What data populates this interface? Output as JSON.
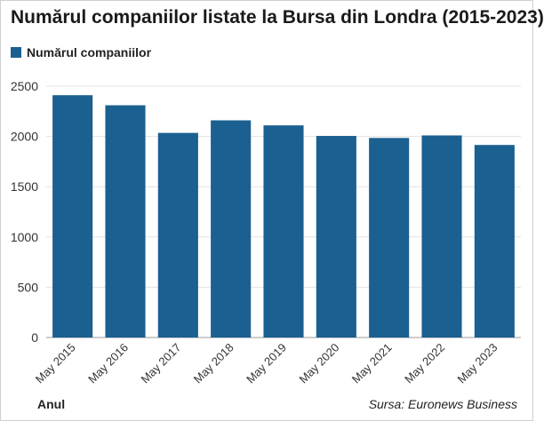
{
  "chart_data": {
    "type": "bar",
    "title": "Numărul companiilor listate la Bursa din Londra (2015-2023)",
    "categories": [
      "May 2015",
      "May 2016",
      "May 2017",
      "May 2018",
      "May 2019",
      "May 2020",
      "May 2021",
      "May 2022",
      "May 2023"
    ],
    "series": [
      {
        "name": "Numărul companiilor",
        "values": [
          2410,
          2310,
          2035,
          2160,
          2110,
          2005,
          1985,
          2010,
          1915
        ]
      }
    ],
    "xlabel": "Anul",
    "ylabel": "",
    "ylim": [
      0,
      2500
    ],
    "yticks": [
      0,
      500,
      1000,
      1500,
      2000,
      2500
    ],
    "grid": true,
    "legend_position": "top-left",
    "bar_color": "#1a6090",
    "source": "Sursa: Euronews Business"
  }
}
